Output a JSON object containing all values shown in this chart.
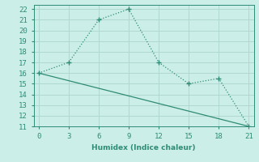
{
  "xlabel": "Humidex (Indice chaleur)",
  "line1_x": [
    0,
    3,
    6,
    9,
    12,
    15,
    18,
    21
  ],
  "line1_y": [
    16,
    17,
    21,
    22,
    17,
    15,
    15.5,
    11
  ],
  "line2_x": [
    0,
    21
  ],
  "line2_y": [
    16,
    11
  ],
  "color": "#2e8b75",
  "bg_color": "#cceee8",
  "grid_color": "#b0d8d0",
  "xlim": [
    -0.5,
    21.5
  ],
  "ylim": [
    11,
    22.4
  ],
  "xticks": [
    0,
    3,
    6,
    9,
    12,
    15,
    18,
    21
  ],
  "yticks": [
    11,
    12,
    13,
    14,
    15,
    16,
    17,
    18,
    19,
    20,
    21,
    22
  ]
}
